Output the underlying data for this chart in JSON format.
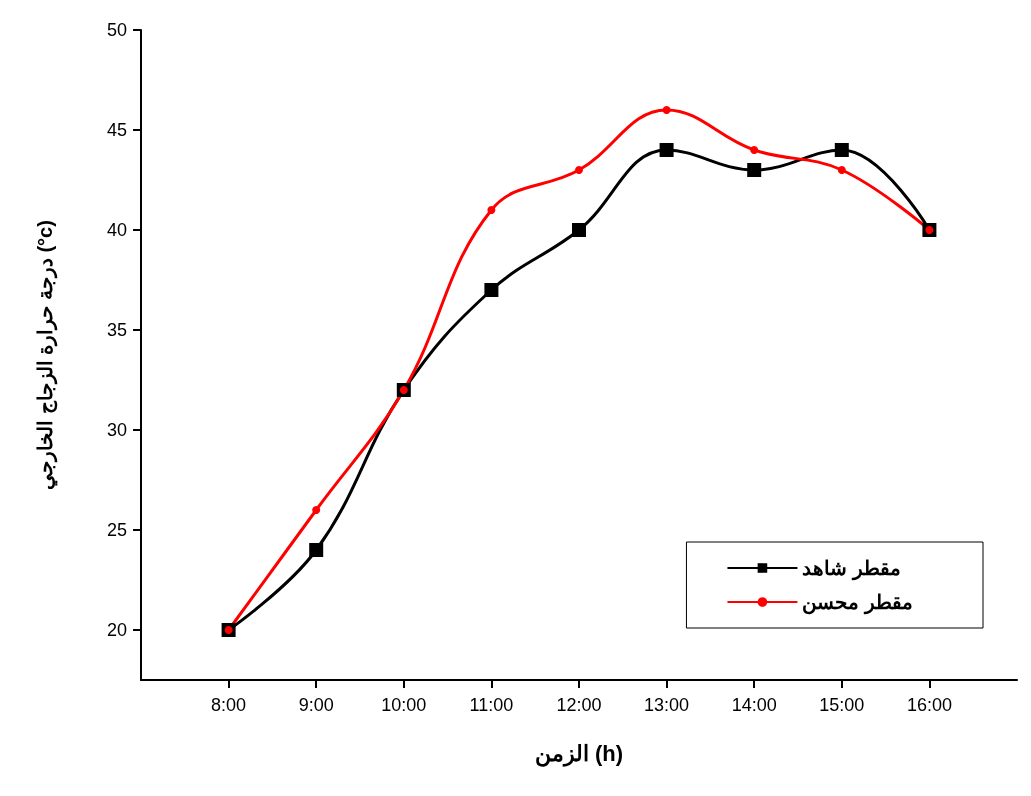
{
  "chart_data": {
    "type": "line",
    "xlabel": "الزمن (h)",
    "ylabel": "درجة حرارة الزجاج الخارجي (°c)",
    "x": [
      8,
      9,
      10,
      11,
      12,
      13,
      14,
      15,
      16
    ],
    "xlim": [
      7,
      17
    ],
    "xticks": [
      {
        "value": 8,
        "label": "8:00"
      },
      {
        "value": 9,
        "label": "9:00"
      },
      {
        "value": 10,
        "label": "10:00"
      },
      {
        "value": 11,
        "label": "11:00"
      },
      {
        "value": 12,
        "label": "12:00"
      },
      {
        "value": 13,
        "label": "13:00"
      },
      {
        "value": 14,
        "label": "14:00"
      },
      {
        "value": 15,
        "label": "15:00"
      },
      {
        "value": 16,
        "label": "16:00"
      }
    ],
    "ylim": [
      17.5,
      50
    ],
    "yticks": [
      20,
      25,
      30,
      35,
      40,
      45,
      50
    ],
    "grid": false,
    "legend": "bottom right",
    "line_style": "solid",
    "series": [
      {
        "name": "مقطر شاهد",
        "color": "#000000",
        "marker": "square",
        "values": [
          20,
          24,
          32,
          37,
          40,
          44,
          43,
          44,
          40
        ]
      },
      {
        "name": "مقطر محسن",
        "color": "#ff0000",
        "marker": "circle",
        "values": [
          20,
          26,
          32,
          41,
          43,
          46,
          44,
          43,
          40
        ]
      }
    ]
  }
}
